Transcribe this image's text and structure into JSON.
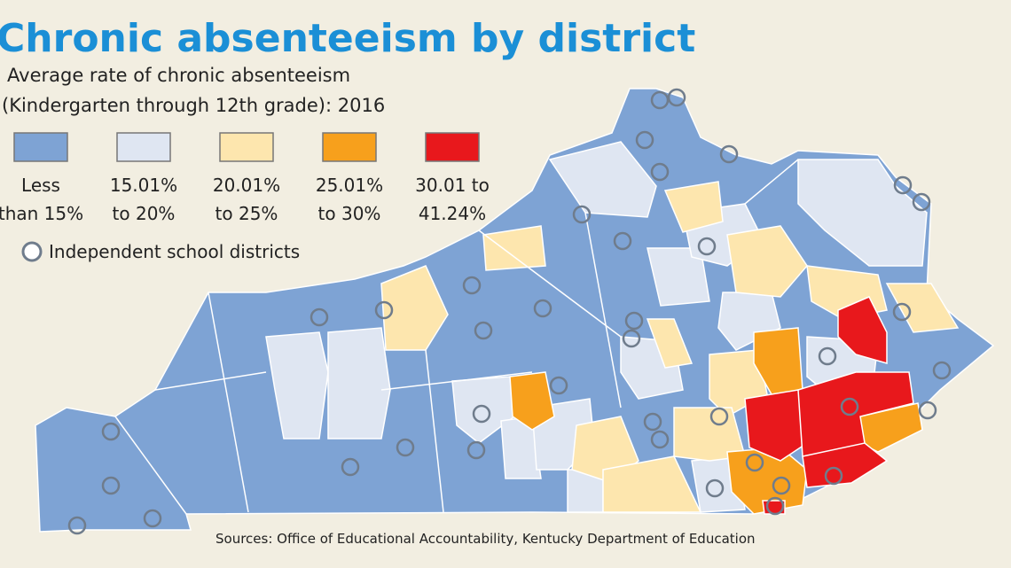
{
  "title": "Chronic absenteeism by district",
  "subtitle": [
    "Average rate of chronic absenteeism",
    "(Kindergarten through 12th grade): 2016"
  ],
  "legend": [
    {
      "lines": [
        "Less",
        "than 15%"
      ],
      "color": "#7ea3d4"
    },
    {
      "lines": [
        "15.01%",
        "to 20%"
      ],
      "color": "#dfe6f2"
    },
    {
      "lines": [
        "20.01%",
        "to 25%"
      ],
      "color": "#fde6ae"
    },
    {
      "lines": [
        "25.01%",
        "to 30%"
      ],
      "color": "#f7a01c"
    },
    {
      "lines": [
        "30.01 to",
        "41.24%"
      ],
      "color": "#e8181c"
    }
  ],
  "independent_label": "Independent school districts",
  "source": "Sources: Office of Educational Accountability, Kentucky Department of Education"
}
